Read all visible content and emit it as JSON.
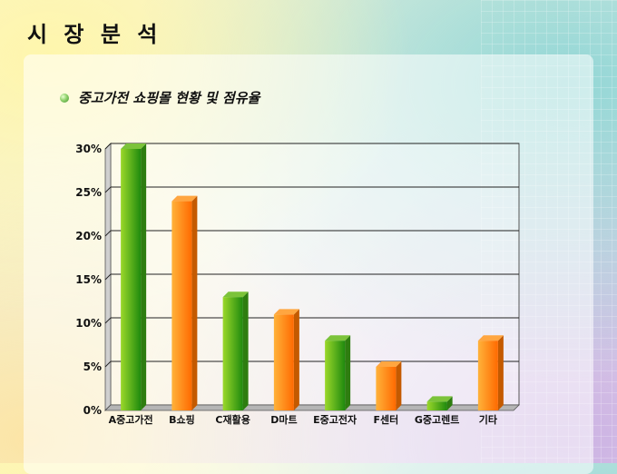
{
  "slide": {
    "title": "시 장 분 석",
    "subtitle": "중고가전 쇼핑몰 현황 및 점유율"
  },
  "colors": {
    "green_front": "#4caf1c",
    "green_side": "#2e7d10",
    "orange_front": "#ff8a00",
    "orange_side": "#c45a00"
  },
  "chart_data": {
    "type": "bar",
    "categories": [
      "A중고가전",
      "B쇼핑",
      "C재활용",
      "D마트",
      "E중고전자",
      "F센터",
      "G중고렌트",
      "기타"
    ],
    "values": [
      30,
      24,
      13,
      11,
      8,
      5,
      1,
      8
    ],
    "bar_colors": [
      "green",
      "orange",
      "green",
      "orange",
      "green",
      "orange",
      "green",
      "orange"
    ],
    "y_ticks": [
      "0%",
      "5%",
      "10%",
      "15%",
      "20%",
      "25%",
      "30%"
    ],
    "ylim": [
      0,
      30
    ],
    "grid": true,
    "title": "",
    "xlabel": "",
    "ylabel": ""
  }
}
